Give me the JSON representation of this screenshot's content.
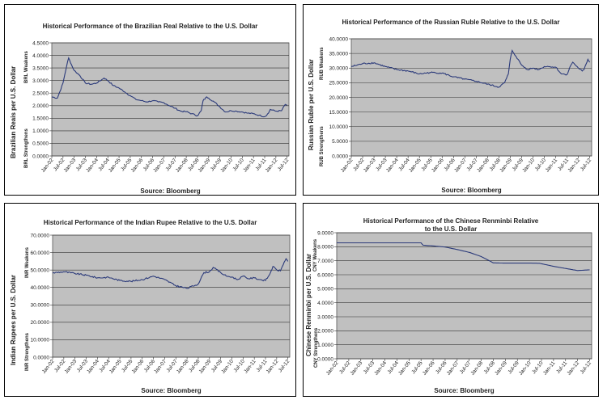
{
  "chart_data": [
    {
      "type": "line",
      "title": "Historical Performance of the Brazilian Real Relative to the U.S. Dollar",
      "ylabel": "Brazilian Reais per U.S. Dollar",
      "weaker_label": "BRL Weakens",
      "stronger_label": "BRL Strengthens",
      "source": "Source: Bloomberg",
      "yticks": [
        "0.0000",
        "0.5000",
        "1.0000",
        "1.5000",
        "2.0000",
        "2.5000",
        "3.0000",
        "3.5000",
        "4.0000",
        "4.5000"
      ],
      "ylim": [
        0,
        4.5
      ],
      "xticks": [
        "Jan-02",
        "Jul-02",
        "Jan-03",
        "Jul-03",
        "Jan-04",
        "Jul-04",
        "Jan-05",
        "Jul-05",
        "Jan-06",
        "Jul-06",
        "Jan-07",
        "Jul-07",
        "Jan-08",
        "Jul-08",
        "Jan-09",
        "Jul-09",
        "Jan-10",
        "Jul-10",
        "Jan-11",
        "Jul-11",
        "Jan-12",
        "Jul-12"
      ],
      "x": [
        "Jan-02",
        "Apr-02",
        "Jul-02",
        "Sep-02",
        "Oct-02",
        "Dec-02",
        "Jan-03",
        "Apr-03",
        "Jul-03",
        "Oct-03",
        "Jan-04",
        "May-04",
        "Jul-04",
        "Oct-04",
        "Jan-05",
        "Apr-05",
        "Jul-05",
        "Oct-05",
        "Jan-06",
        "Apr-06",
        "Jul-06",
        "Oct-06",
        "Jan-07",
        "Apr-07",
        "Jul-07",
        "Oct-07",
        "Jan-08",
        "Apr-08",
        "Jul-08",
        "Sep-08",
        "Oct-08",
        "Dec-08",
        "Jan-09",
        "Apr-09",
        "Jul-09",
        "Oct-09",
        "Jan-10",
        "Apr-10",
        "Jul-10",
        "Oct-10",
        "Jan-11",
        "Apr-11",
        "Jul-11",
        "Sep-11",
        "Oct-11",
        "Jan-12",
        "Apr-12",
        "Jun-12",
        "Jul-12"
      ],
      "values": [
        2.35,
        2.3,
        2.9,
        3.6,
        3.9,
        3.55,
        3.4,
        3.2,
        2.9,
        2.85,
        2.9,
        3.1,
        3.0,
        2.8,
        2.7,
        2.55,
        2.4,
        2.25,
        2.2,
        2.15,
        2.2,
        2.15,
        2.12,
        2.0,
        1.9,
        1.78,
        1.76,
        1.68,
        1.6,
        1.8,
        2.2,
        2.35,
        2.3,
        2.15,
        1.95,
        1.75,
        1.8,
        1.78,
        1.75,
        1.7,
        1.68,
        1.62,
        1.56,
        1.7,
        1.85,
        1.78,
        1.8,
        2.05,
        2.02
      ],
      "series": [
        {
          "color": "#2b3a7a"
        }
      ]
    },
    {
      "type": "line",
      "title": "Historical Performance of the Russian Ruble Relative to the U.S. Dollar",
      "ylabel": "Russian Ruble per U.S. Dollar",
      "weaker_label": "RUB Weakens",
      "stronger_label": "RUB Strengthens",
      "source": "Source: Bloomberg",
      "yticks": [
        "0.0000",
        "5.0000",
        "10.0000",
        "15.0000",
        "20.0000",
        "25.0000",
        "30.0000",
        "35.0000",
        "40.0000"
      ],
      "ylim": [
        0,
        40
      ],
      "xticks": [
        "Jan-02",
        "Jul-02",
        "Jan-03",
        "Jul-03",
        "Jan-04",
        "Jul-04",
        "Jan-05",
        "Jul-05",
        "Jan-06",
        "Jul-06",
        "Jan-07",
        "Jul-07",
        "Jan-08",
        "Jul-08",
        "Jan-09",
        "Jul-09",
        "Jan-10",
        "Jul-10",
        "Jan-11",
        "Jul-11",
        "Jan-12",
        "Jul-12"
      ],
      "x": [
        "Jan-02",
        "Jul-02",
        "Jan-03",
        "Jul-03",
        "Jan-04",
        "Jul-04",
        "Jan-05",
        "Jul-05",
        "Jan-06",
        "Jul-06",
        "Jan-07",
        "Jul-07",
        "Jan-08",
        "Jul-08",
        "Oct-08",
        "Dec-08",
        "Jan-09",
        "Feb-09",
        "Apr-09",
        "Jul-09",
        "Oct-09",
        "Jan-10",
        "Apr-10",
        "Jul-10",
        "Oct-10",
        "Jan-11",
        "Apr-11",
        "Jul-11",
        "Sep-11",
        "Oct-11",
        "Jan-12",
        "Mar-12",
        "Apr-12",
        "Jun-12",
        "Jul-12"
      ],
      "values": [
        30.5,
        31.5,
        31.8,
        30.5,
        29.5,
        29.0,
        28.0,
        28.5,
        28.3,
        27.0,
        26.2,
        25.5,
        24.5,
        23.5,
        25.0,
        28.0,
        33.0,
        36.0,
        34.0,
        31.0,
        29.5,
        30.0,
        29.5,
        30.5,
        30.5,
        30.3,
        28.0,
        27.8,
        31.0,
        32.0,
        30.0,
        29.0,
        29.5,
        33.0,
        32.0
      ],
      "series": [
        {
          "color": "#2b3a7a"
        }
      ]
    },
    {
      "type": "line",
      "title": "Historical Performance of the Indian Rupee Relative to the U.S. Dollar",
      "ylabel": "Indian Rupees per U.S. Dollar",
      "weaker_label": "INR Weakens",
      "stronger_label": "INR Strengthens",
      "source": "Source: Bloomberg",
      "yticks": [
        "0.0000",
        "10.0000",
        "20.0000",
        "30.0000",
        "40.0000",
        "50.0000",
        "60.0000",
        "70.0000"
      ],
      "ylim": [
        0,
        70
      ],
      "xticks": [
        "Jan-02",
        "Jul-02",
        "Jan-03",
        "Jul-03",
        "Jan-04",
        "Jul-04",
        "Jan-05",
        "Jul-05",
        "Jan-06",
        "Jul-06",
        "Jan-07",
        "Jul-07",
        "Jan-08",
        "Jul-08",
        "Jan-09",
        "Jul-09",
        "Jan-10",
        "Jul-10",
        "Jan-11",
        "Jul-11",
        "Jan-12",
        "Jul-12"
      ],
      "x": [
        "Jan-02",
        "Jul-02",
        "Jan-03",
        "Jul-03",
        "Jan-04",
        "Jul-04",
        "Jan-05",
        "Jul-05",
        "Jan-06",
        "Jul-06",
        "Jan-07",
        "Jul-07",
        "Jan-08",
        "Jul-08",
        "Oct-08",
        "Jan-09",
        "Mar-09",
        "Jul-09",
        "Oct-09",
        "Jan-10",
        "Apr-10",
        "Jul-10",
        "Oct-10",
        "Jan-11",
        "Apr-11",
        "Jul-11",
        "Sep-11",
        "Nov-11",
        "Jan-12",
        "Mar-12",
        "May-12",
        "Jun-12",
        "Jul-12"
      ],
      "values": [
        48.3,
        49.0,
        48.0,
        47.0,
        45.5,
        45.8,
        44.0,
        43.5,
        44.5,
        46.5,
        44.5,
        41.0,
        39.5,
        42.0,
        48.5,
        49.0,
        51.5,
        48.5,
        46.5,
        46.0,
        44.5,
        46.5,
        45.0,
        45.5,
        44.5,
        44.0,
        47.0,
        52.0,
        50.0,
        49.5,
        54.5,
        56.5,
        55.0
      ],
      "series": [
        {
          "color": "#2b3a7a"
        }
      ]
    },
    {
      "type": "line",
      "title": "Historical Performance of the Chinese Renminbi Relative to the U.S. Dollar",
      "ylabel": "Chinese Renminbi per U.S. Dollar",
      "weaker_label": "CNY Weakens",
      "stronger_label": "CNY Strengthens",
      "source": "Source: Bloomberg",
      "yticks": [
        "0.0000",
        "1.0000",
        "2.0000",
        "3.0000",
        "4.0000",
        "5.0000",
        "6.0000",
        "7.0000",
        "8.0000",
        "9.0000"
      ],
      "ylim": [
        0,
        9
      ],
      "xticks": [
        "Jan-02",
        "Jul-02",
        "Jan-03",
        "Jul-03",
        "Jan-04",
        "Jul-04",
        "Jan-05",
        "Jul-05",
        "Jan-06",
        "Jul-06",
        "Jan-07",
        "Jul-07",
        "Jan-08",
        "Jul-08",
        "Jan-09",
        "Jul-09",
        "Jan-10",
        "Jul-10",
        "Jan-11",
        "Jul-11",
        "Jan-12",
        "Jul-12"
      ],
      "x": [
        "Jan-02",
        "Jul-05",
        "Aug-05",
        "Jan-06",
        "Jul-06",
        "Jan-07",
        "Jul-07",
        "Jan-08",
        "Jul-08",
        "Jan-09",
        "Jul-09",
        "Jan-10",
        "Jun-10",
        "Jan-11",
        "Jul-11",
        "Jan-12",
        "Jul-12"
      ],
      "values": [
        8.28,
        8.28,
        8.11,
        8.06,
        7.98,
        7.8,
        7.6,
        7.3,
        6.85,
        6.83,
        6.83,
        6.83,
        6.82,
        6.6,
        6.45,
        6.3,
        6.35
      ],
      "series": [
        {
          "color": "#2b3a7a"
        }
      ]
    }
  ]
}
